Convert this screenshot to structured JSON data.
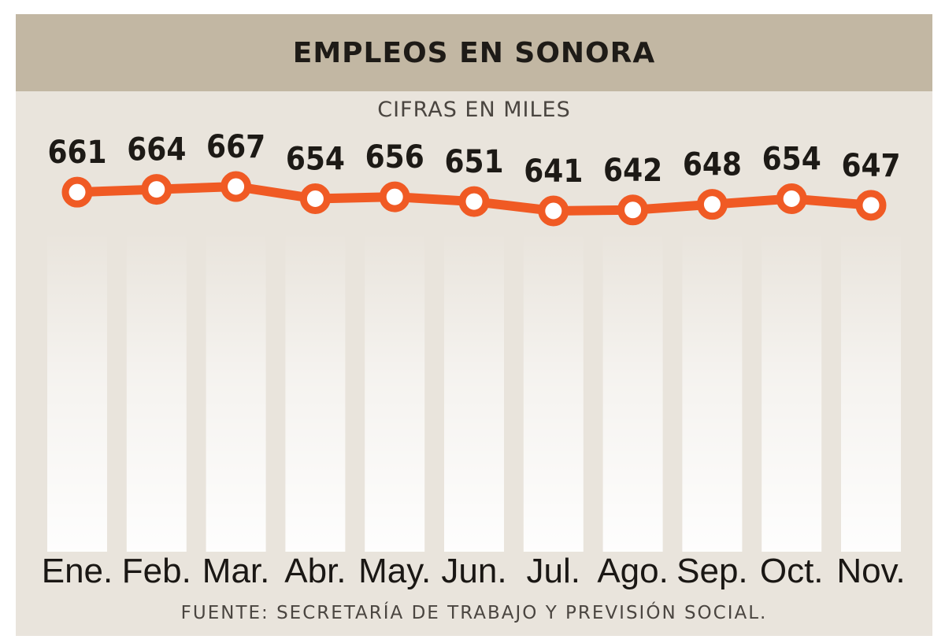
{
  "header": {
    "title": "EMPLEOS EN SONORA"
  },
  "subtitle": "CIFRAS EN MILES",
  "source": "FUENTE: SECRETARÍA DE TRABAJO Y PREVISIÓN SOCIAL.",
  "colors": {
    "line": "#f05a24",
    "header_bg": "#c2b7a3",
    "card_bg": "#e9e4dc"
  },
  "chart_data": {
    "type": "line",
    "title": "EMPLEOS EN SONORA",
    "subtitle": "CIFRAS EN MILES",
    "categories": [
      "Ene.",
      "Feb.",
      "Mar.",
      "Abr.",
      "May.",
      "Jun.",
      "Jul.",
      "Ago.",
      "Sep.",
      "Oct.",
      "Nov."
    ],
    "series": [
      {
        "name": "Empleos (miles)",
        "values": [
          661,
          664,
          667,
          654,
          656,
          651,
          641,
          642,
          648,
          654,
          647
        ]
      }
    ],
    "value_labels": [
      "661",
      "664",
      "667",
      "654",
      "656",
      "651",
      "641",
      "642",
      "648",
      "654",
      "647"
    ],
    "xlabel": "",
    "ylabel": "",
    "grid": false,
    "legend": "none"
  }
}
